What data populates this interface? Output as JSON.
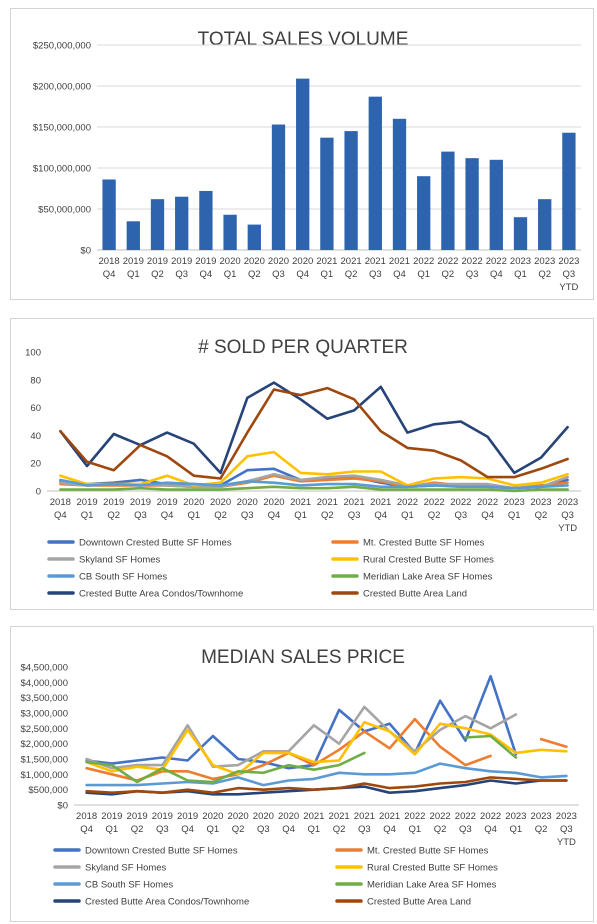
{
  "charts": [
    {
      "type": "bar",
      "title": "TOTAL SALES VOLUME",
      "ylim": [
        0,
        250000000
      ],
      "yticks": [
        0,
        50000000,
        100000000,
        150000000,
        200000000,
        250000000
      ],
      "ytick_labels": [
        "$0",
        "$50,000,000",
        "$100,000,000",
        "$150,000,000",
        "$200,000,000",
        "$250,000,000"
      ],
      "color": "#2e64ae",
      "categories": [
        [
          "2018",
          "Q4"
        ],
        [
          "2019",
          "Q1"
        ],
        [
          "2019",
          "Q2"
        ],
        [
          "2019",
          "Q3"
        ],
        [
          "2019",
          "Q4"
        ],
        [
          "2020",
          "Q1"
        ],
        [
          "2020",
          "Q2"
        ],
        [
          "2020",
          "Q3"
        ],
        [
          "2020",
          "Q4"
        ],
        [
          "2021",
          "Q1"
        ],
        [
          "2021",
          "Q2"
        ],
        [
          "2021",
          "Q3"
        ],
        [
          "2021",
          "Q4"
        ],
        [
          "2022",
          "Q1"
        ],
        [
          "2022",
          "Q2"
        ],
        [
          "2022",
          "Q3"
        ],
        [
          "2022",
          "Q4"
        ],
        [
          "2023",
          "Q1"
        ],
        [
          "2023",
          "Q2"
        ],
        [
          "2023",
          "Q3",
          "YTD"
        ]
      ],
      "values": [
        86000000,
        35000000,
        62000000,
        65000000,
        72000000,
        43000000,
        31000000,
        153000000,
        209000000,
        137000000,
        145000000,
        187000000,
        160000000,
        90000000,
        120000000,
        112000000,
        110000000,
        40000000,
        62000000,
        143000000
      ]
    },
    {
      "type": "line",
      "title": "# SOLD PER QUARTER",
      "ylim": [
        0,
        100
      ],
      "yticks": [
        0,
        20,
        40,
        60,
        80,
        100
      ],
      "ytick_labels": [
        "0",
        "20",
        "40",
        "60",
        "80",
        "100"
      ],
      "categories": [
        [
          "2018",
          "Q4"
        ],
        [
          "2019",
          "Q1"
        ],
        [
          "2019",
          "Q2"
        ],
        [
          "2019",
          "Q3"
        ],
        [
          "2019",
          "Q4"
        ],
        [
          "2020",
          "Q1"
        ],
        [
          "2020",
          "Q2"
        ],
        [
          "2020",
          "Q3"
        ],
        [
          "2020",
          "Q4"
        ],
        [
          "2021",
          "Q1"
        ],
        [
          "2021",
          "Q2"
        ],
        [
          "2021",
          "Q3"
        ],
        [
          "2021",
          "Q4"
        ],
        [
          "2022",
          "Q1"
        ],
        [
          "2022",
          "Q2"
        ],
        [
          "2022",
          "Q3"
        ],
        [
          "2022",
          "Q4"
        ],
        [
          "2023",
          "Q1"
        ],
        [
          "2023",
          "Q2"
        ],
        [
          "2023",
          "Q3",
          "YTD"
        ]
      ],
      "series": [
        {
          "name": "Downtown Crested Butte SF Homes",
          "color": "#4472c4",
          "values": [
            7,
            5,
            6,
            8,
            5,
            5,
            4,
            15,
            16,
            8,
            9,
            10,
            6,
            3,
            4,
            4,
            4,
            2,
            3,
            8
          ]
        },
        {
          "name": "Mt. Crested Butte SF Homes",
          "color": "#ed7d31",
          "values": [
            5,
            4,
            4,
            4,
            4,
            3,
            3,
            6,
            11,
            7,
            8,
            9,
            7,
            3,
            6,
            4,
            3,
            2,
            4,
            6
          ]
        },
        {
          "name": "Skyland SF Homes",
          "color": "#a5a5a5",
          "values": [
            6,
            4,
            5,
            5,
            4,
            3,
            3,
            7,
            12,
            8,
            10,
            11,
            8,
            4,
            5,
            5,
            5,
            2,
            3,
            10
          ]
        },
        {
          "name": "Rural Crested Butte SF Homes",
          "color": "#ffc000",
          "values": [
            11,
            5,
            5,
            5,
            11,
            4,
            6,
            25,
            28,
            13,
            12,
            14,
            14,
            4,
            9,
            10,
            9,
            4,
            6,
            12
          ]
        },
        {
          "name": "CB South SF Homes",
          "color": "#5b9bd5",
          "values": [
            8,
            4,
            5,
            4,
            6,
            5,
            4,
            7,
            6,
            4,
            5,
            5,
            3,
            3,
            4,
            3,
            3,
            2,
            3,
            4
          ]
        },
        {
          "name": "Meridian Lake Area SF Homes",
          "color": "#70ad47",
          "values": [
            1,
            1,
            1,
            2,
            1,
            1,
            1,
            2,
            3,
            2,
            2,
            3,
            1,
            1,
            1,
            1,
            1,
            0,
            1,
            1
          ]
        },
        {
          "name": "Crested Butte Area Condos/Townhome",
          "color": "#264478",
          "values": [
            43,
            18,
            41,
            33,
            42,
            34,
            13,
            67,
            78,
            66,
            52,
            58,
            75,
            42,
            48,
            50,
            39,
            13,
            24,
            46
          ]
        },
        {
          "name": "Crested Butte Area Land",
          "color": "#9e480e",
          "values": [
            43,
            21,
            15,
            33,
            25,
            11,
            9,
            42,
            73,
            69,
            74,
            66,
            43,
            31,
            29,
            22,
            10,
            10,
            16,
            23
          ]
        }
      ]
    },
    {
      "type": "line",
      "title": "MEDIAN SALES PRICE",
      "ylim": [
        0,
        4500000
      ],
      "yticks": [
        0,
        500000,
        1000000,
        1500000,
        2000000,
        2500000,
        3000000,
        3500000,
        4000000,
        4500000
      ],
      "ytick_labels": [
        "$0",
        "$500,000",
        "$1,000,000",
        "$1,500,000",
        "$2,000,000",
        "$2,500,000",
        "$3,000,000",
        "$3,500,000",
        "$4,000,000",
        "$4,500,000"
      ],
      "categories": [
        [
          "2018",
          "Q4"
        ],
        [
          "2019",
          "Q1"
        ],
        [
          "2019",
          "Q2"
        ],
        [
          "2019",
          "Q3"
        ],
        [
          "2019",
          "Q4"
        ],
        [
          "2020",
          "Q1"
        ],
        [
          "2020",
          "Q2"
        ],
        [
          "2020",
          "Q3"
        ],
        [
          "2020",
          "Q4"
        ],
        [
          "2021",
          "Q1"
        ],
        [
          "2021",
          "Q2"
        ],
        [
          "2021",
          "Q3"
        ],
        [
          "2021",
          "Q4"
        ],
        [
          "2022",
          "Q1"
        ],
        [
          "2022",
          "Q2"
        ],
        [
          "2022",
          "Q3"
        ],
        [
          "2022",
          "Q4"
        ],
        [
          "2023",
          "Q1"
        ],
        [
          "2023",
          "Q2"
        ],
        [
          "2023",
          "Q3",
          "YTD"
        ]
      ],
      "series": [
        {
          "name": "Downtown Crested Butte SF Homes",
          "color": "#4472c4",
          "values": [
            1450000,
            1350000,
            1450000,
            1550000,
            1450000,
            2250000,
            1500000,
            1400000,
            1200000,
            1300000,
            3100000,
            2400000,
            2650000,
            1700000,
            3400000,
            2100000,
            4200000,
            1650000,
            null,
            null
          ]
        },
        {
          "name": "Mt. Crested Butte SF Homes",
          "color": "#ed7d31",
          "values": [
            1200000,
            1000000,
            800000,
            1100000,
            1100000,
            850000,
            1000000,
            1300000,
            1700000,
            1300000,
            1800000,
            2400000,
            1850000,
            2800000,
            1900000,
            1300000,
            1600000,
            null,
            2150000,
            1900000
          ]
        },
        {
          "name": "Skyland SF Homes",
          "color": "#a5a5a5",
          "values": [
            1500000,
            1200000,
            1300000,
            1300000,
            2600000,
            1250000,
            1300000,
            1750000,
            1750000,
            2600000,
            2000000,
            3200000,
            2400000,
            1750000,
            2450000,
            2900000,
            2500000,
            2950000,
            null,
            null
          ]
        },
        {
          "name": "Rural Crested Butte SF Homes",
          "color": "#ffc000",
          "values": [
            1400000,
            1100000,
            1250000,
            1150000,
            2450000,
            1300000,
            1000000,
            1700000,
            1700000,
            1400000,
            1450000,
            2700000,
            2400000,
            1650000,
            2650000,
            2500000,
            2300000,
            1700000,
            1800000,
            1750000
          ]
        },
        {
          "name": "CB South SF Homes",
          "color": "#5b9bd5",
          "values": [
            650000,
            650000,
            650000,
            700000,
            750000,
            700000,
            900000,
            650000,
            800000,
            850000,
            1050000,
            1000000,
            1000000,
            1050000,
            1350000,
            1200000,
            1100000,
            1050000,
            900000,
            950000
          ]
        },
        {
          "name": "Meridian Lake Area SF Homes",
          "color": "#70ad47",
          "values": [
            1400000,
            1300000,
            750000,
            1200000,
            800000,
            750000,
            1100000,
            1050000,
            1300000,
            1150000,
            1300000,
            1700000,
            null,
            null,
            null,
            2200000,
            2250000,
            1550000,
            null,
            null
          ]
        },
        {
          "name": "Crested Butte Area Condos/Townhome",
          "color": "#264478",
          "values": [
            400000,
            350000,
            450000,
            400000,
            450000,
            350000,
            350000,
            400000,
            450000,
            500000,
            550000,
            600000,
            400000,
            450000,
            550000,
            650000,
            800000,
            700000,
            800000,
            800000
          ]
        },
        {
          "name": "Crested Butte Area Land",
          "color": "#9e480e",
          "values": [
            450000,
            400000,
            450000,
            400000,
            500000,
            400000,
            550000,
            500000,
            550000,
            500000,
            550000,
            700000,
            550000,
            600000,
            700000,
            750000,
            900000,
            850000,
            800000,
            800000
          ]
        }
      ]
    }
  ]
}
